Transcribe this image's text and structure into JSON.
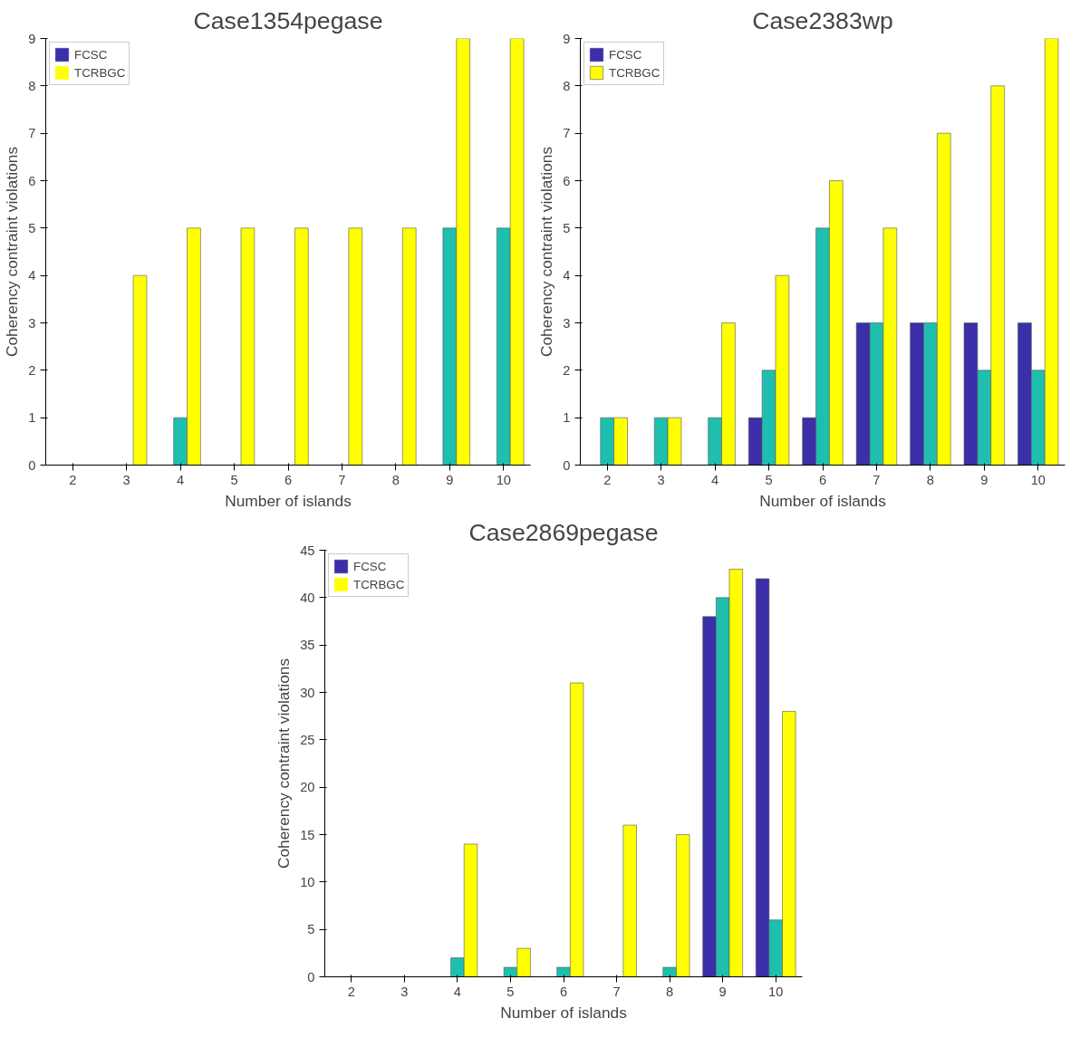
{
  "chart_data": [
    {
      "type": "bar",
      "title": "Case1354pegase",
      "xlabel": "Number of islands",
      "ylabel": "Coherency contraint violations",
      "categories": [
        "2",
        "3",
        "4",
        "5",
        "6",
        "7",
        "8",
        "9",
        "10"
      ],
      "ylim": [
        0,
        9
      ],
      "yticks": [
        0,
        1,
        2,
        3,
        4,
        5,
        6,
        7,
        8,
        9
      ],
      "grid": false,
      "legend": "top left",
      "series": [
        {
          "name": "FCSC",
          "color": "#3a2fa8",
          "values": [
            0,
            0,
            0,
            0,
            0,
            0,
            0,
            0,
            0
          ]
        },
        {
          "color": "#1fbfb0",
          "values": [
            0,
            0,
            1,
            0,
            0,
            0,
            0,
            5,
            5
          ]
        },
        {
          "name": "TCRBGC",
          "color": "#ffff00",
          "values": [
            0,
            4,
            5,
            5,
            5,
            5,
            5,
            9,
            9
          ]
        }
      ]
    },
    {
      "type": "bar",
      "title": "Case2383wp",
      "xlabel": "Number of islands",
      "ylabel": "Coherency contraint violations",
      "categories": [
        "2",
        "3",
        "4",
        "5",
        "6",
        "7",
        "8",
        "9",
        "10"
      ],
      "ylim": [
        0,
        9
      ],
      "yticks": [
        0,
        1,
        2,
        3,
        4,
        5,
        6,
        7,
        8,
        9
      ],
      "grid": false,
      "legend": "top left",
      "series": [
        {
          "name": "FCSC",
          "color": "#3a2fa8",
          "values": [
            0,
            0,
            0,
            1,
            1,
            3,
            3,
            3,
            3
          ]
        },
        {
          "color": "#1fbfb0",
          "values": [
            1,
            1,
            1,
            2,
            5,
            3,
            3,
            2,
            2
          ]
        },
        {
          "name": "TCRBGC",
          "color": "#ffff00",
          "values": [
            1,
            1,
            3,
            4,
            6,
            5,
            7,
            8,
            9
          ]
        }
      ]
    },
    {
      "type": "bar",
      "title": "Case2869pegase",
      "xlabel": "Number of islands",
      "ylabel": "Coherency contraint violations",
      "categories": [
        "2",
        "3",
        "4",
        "5",
        "6",
        "7",
        "8",
        "9",
        "10"
      ],
      "ylim": [
        0,
        45
      ],
      "yticks": [
        0,
        5,
        10,
        15,
        20,
        25,
        30,
        35,
        40,
        45
      ],
      "grid": false,
      "legend": "top left",
      "series": [
        {
          "name": "FCSC",
          "color": "#3a2fa8",
          "values": [
            0,
            0,
            0,
            0,
            0,
            0,
            0,
            38,
            42
          ]
        },
        {
          "color": "#1fbfb0",
          "values": [
            0,
            0,
            2,
            1,
            1,
            0,
            1,
            40,
            6
          ]
        },
        {
          "name": "TCRBGC",
          "color": "#ffff00",
          "values": [
            0,
            0,
            14,
            3,
            31,
            16,
            15,
            43,
            28
          ]
        }
      ]
    }
  ]
}
